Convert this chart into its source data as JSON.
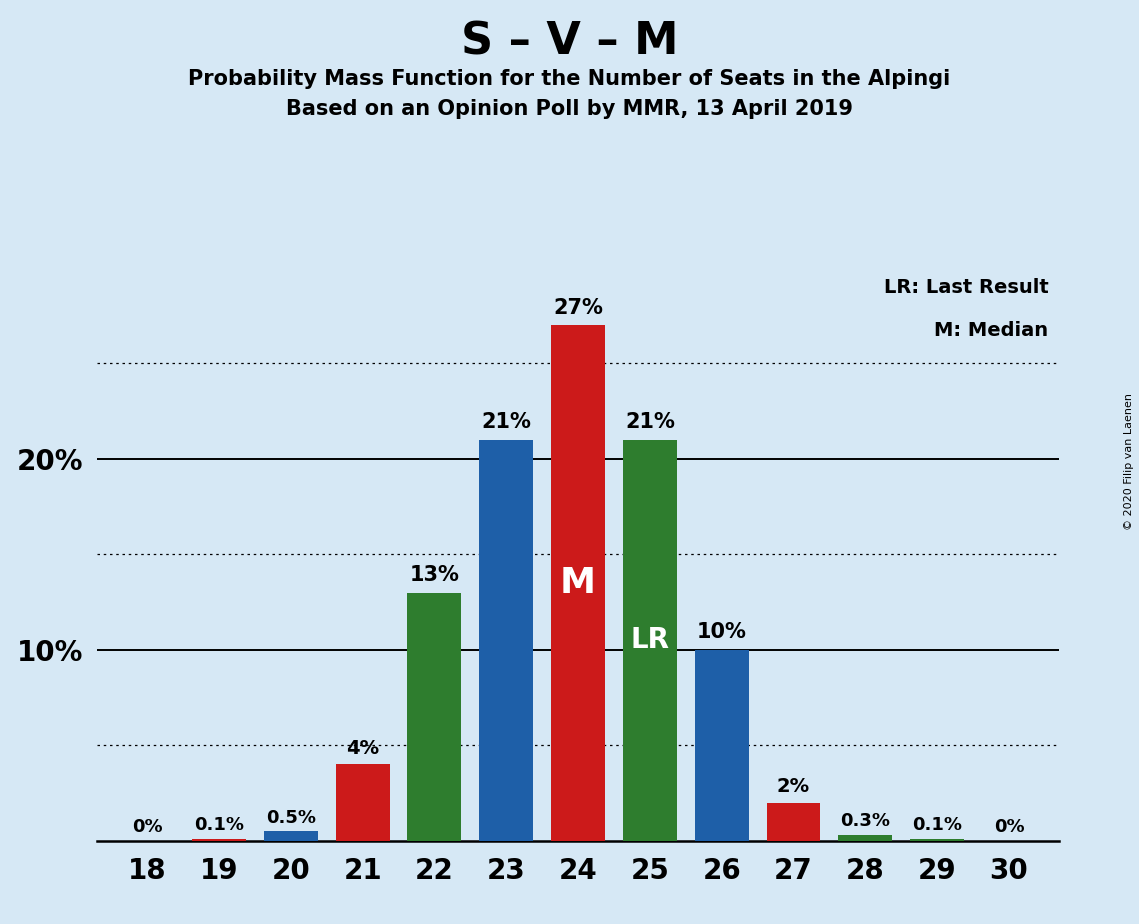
{
  "title": "S – V – M",
  "subtitle1": "Probability Mass Function for the Number of Seats in the Alpingi",
  "subtitle2": "Based on an Opinion Poll by MMR, 13 April 2019",
  "copyright": "© 2020 Filip van Laenen",
  "seats": [
    18,
    19,
    20,
    21,
    22,
    23,
    24,
    25,
    26,
    27,
    28,
    29,
    30
  ],
  "values": [
    0.0,
    0.1,
    0.5,
    4.0,
    13.0,
    21.0,
    27.0,
    21.0,
    10.0,
    2.0,
    0.3,
    0.1,
    0.0
  ],
  "labels": [
    "0%",
    "0.1%",
    "0.5%",
    "4%",
    "13%",
    "21%",
    "27%",
    "21%",
    "10%",
    "2%",
    "0.3%",
    "0.1%",
    "0%"
  ],
  "bar_color_map": {
    "18": "#b0c8d8",
    "19": "#cc1a1a",
    "20": "#1e5fa8",
    "21": "#cc1a1a",
    "22": "#2e7d2e",
    "23": "#1e5fa8",
    "24": "#cc1a1a",
    "25": "#2e7d2e",
    "26": "#1e5fa8",
    "27": "#cc1a1a",
    "28": "#2e7d2e",
    "29": "#2e7d2e",
    "30": "#b0c8d8"
  },
  "median_bar": 24,
  "lr_bar": 25,
  "ylim_max": 30,
  "solid_ylines": [
    10,
    20
  ],
  "dotted_ylines": [
    5,
    15,
    25
  ],
  "ytick_positions": [
    10,
    20
  ],
  "ytick_labels": [
    "10%",
    "20%"
  ],
  "background_color": "#d6e8f5",
  "legend_text1": "LR: Last Result",
  "legend_text2": "M: Median",
  "title_fontsize": 32,
  "subtitle_fontsize": 15,
  "tick_fontsize": 20,
  "label_fontsize": 14,
  "bar_width": 0.75,
  "xlim": [
    17.3,
    30.7
  ]
}
